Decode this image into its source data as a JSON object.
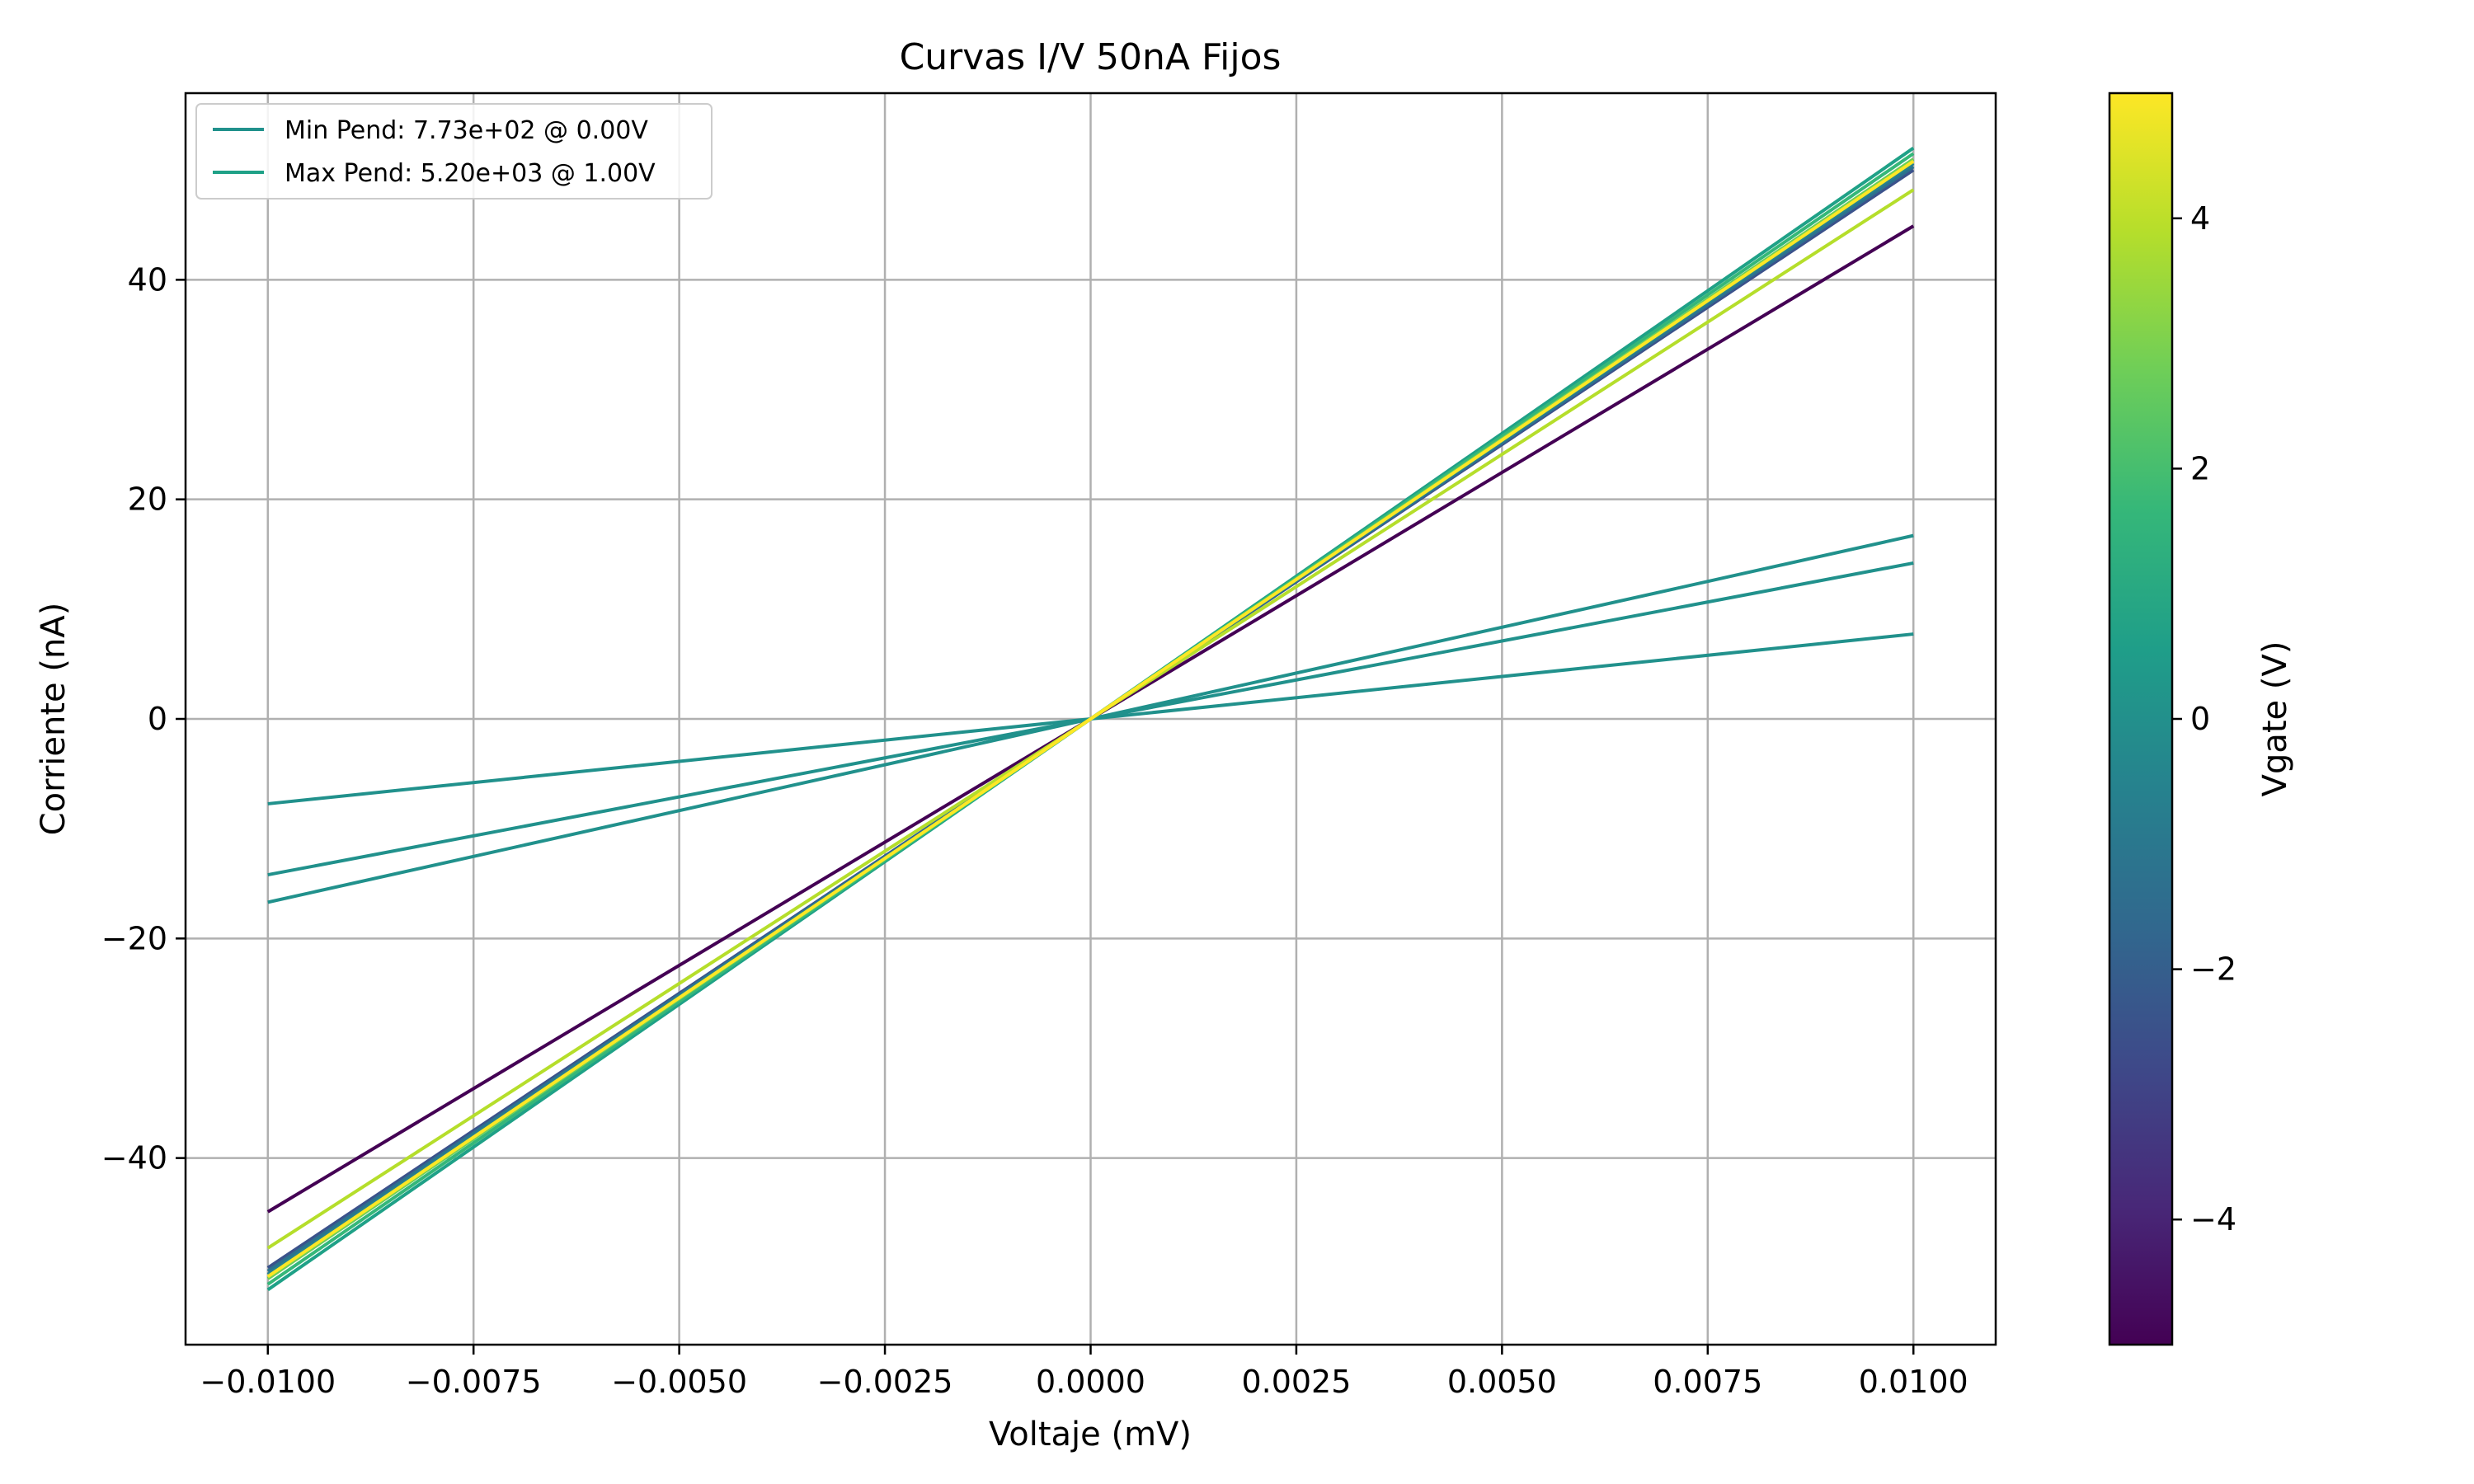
{
  "chart_data": {
    "type": "line",
    "title": "Curvas I/V 50nA Fijos",
    "xlabel": "Voltaje (mV)",
    "ylabel": "Corriente (nA)",
    "xlim": [
      -0.011,
      0.011
    ],
    "ylim": [
      -57,
      57
    ],
    "xticks": [
      -0.01,
      -0.0075,
      -0.005,
      -0.0025,
      0.0,
      0.0025,
      0.005,
      0.0075,
      0.01
    ],
    "xtick_labels": [
      "−0.0100",
      "−0.0075",
      "−0.0050",
      "−0.0025",
      "0.0000",
      "0.0025",
      "0.0050",
      "0.0075",
      "0.0100"
    ],
    "yticks": [
      -40,
      -20,
      0,
      20,
      40
    ],
    "ytick_labels": [
      "−40",
      "−20",
      "0",
      "20",
      "40"
    ],
    "grid": true,
    "legend_position": "top-left",
    "legend": [
      {
        "label": "Min Pend: 7.73e+02 @ 0.00V",
        "color": "#21918c"
      },
      {
        "label": "Max Pend: 5.20e+03 @ 1.00V",
        "color": "#1fa187"
      }
    ],
    "x": [
      -0.01,
      0.01
    ],
    "series": [
      {
        "vgate": -5.0,
        "color": "#440154",
        "values": [
          -44.9,
          44.9
        ]
      },
      {
        "vgate": -3.0,
        "color": "#3b528b",
        "values": [
          -50.0,
          50.0
        ]
      },
      {
        "vgate": -2.0,
        "color": "#2c728e",
        "values": [
          -50.3,
          50.3
        ]
      },
      {
        "vgate": -1.0,
        "color": "#26828e",
        "values": [
          -50.6,
          50.6
        ]
      },
      {
        "vgate": 0.0,
        "color": "#21918c",
        "values": [
          -7.73,
          7.73
        ]
      },
      {
        "vgate": 0.0,
        "color": "#21918c",
        "values": [
          -14.2,
          14.2
        ]
      },
      {
        "vgate": 0.0,
        "color": "#21918c",
        "values": [
          -16.7,
          16.7
        ]
      },
      {
        "vgate": 1.0,
        "color": "#1fa187",
        "values": [
          -52.0,
          52.0
        ]
      },
      {
        "vgate": 2.0,
        "color": "#35b779",
        "values": [
          -51.5,
          51.5
        ]
      },
      {
        "vgate": 3.0,
        "color": "#6ece58",
        "values": [
          -51.0,
          51.0
        ]
      },
      {
        "vgate": 4.0,
        "color": "#b5de2b",
        "values": [
          -48.2,
          48.2
        ]
      },
      {
        "vgate": 5.0,
        "color": "#fde725",
        "values": [
          -50.8,
          50.8
        ]
      }
    ],
    "colorbar": {
      "label": "Vgate (V)",
      "range": [
        -5,
        5
      ],
      "ticks": [
        4,
        2,
        0,
        -2,
        -4
      ],
      "tick_labels": [
        "4",
        "2",
        "0",
        "−2",
        "−4"
      ],
      "colormap": [
        "#440154",
        "#482878",
        "#3e4989",
        "#31688e",
        "#26828e",
        "#1f9e89",
        "#35b779",
        "#6ece58",
        "#b5de2b",
        "#fde725"
      ]
    }
  }
}
